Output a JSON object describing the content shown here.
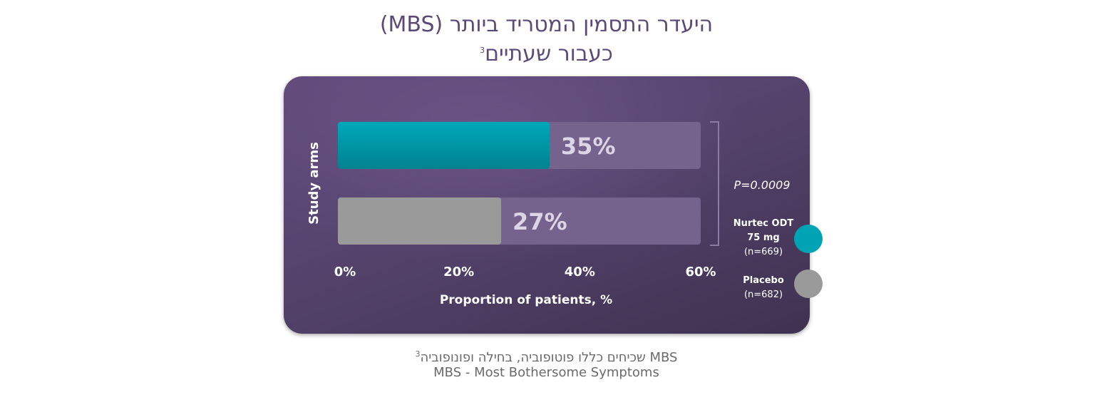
{
  "title": {
    "line1": "היעדר התסמין המטריד ביותר (MBS)",
    "line2": "כעבור שעתיים",
    "sup": "3"
  },
  "footnotes": {
    "line1": "MBS שכיחים כללו פוטופוביה, בחילה ופונופוביה",
    "line1_sup": "3",
    "line2": "MBS - Most Bothersome Symptoms"
  },
  "p_value": "P=0.0009",
  "legend": [
    {
      "label_lines": [
        "Nurtec ODT",
        "75 mg"
      ],
      "n": "(n=669)",
      "color": "#00a3b4"
    },
    {
      "label_lines": [
        "Placebo"
      ],
      "n": "(n=682)",
      "color": "#9a9a9a"
    }
  ],
  "chart_data": {
    "type": "bar",
    "orientation": "horizontal",
    "ylabel": "Study arms",
    "xlabel": "Proportion of patients, %",
    "xlim": [
      0,
      60
    ],
    "xticks": [
      "0%",
      "20%",
      "40%",
      "60%"
    ],
    "grid": false,
    "legend_position": "right",
    "bars": [
      {
        "name": "Nurtec ODT 75 mg",
        "value": 35,
        "label": "35%",
        "color": "#00a3b4"
      },
      {
        "name": "Placebo",
        "value": 27,
        "label": "27%",
        "color": "#9a9a9a"
      }
    ],
    "track_color": "#75628d"
  }
}
